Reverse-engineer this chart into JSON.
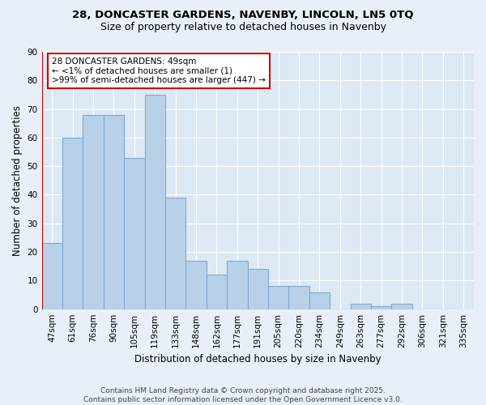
{
  "title_line1": "28, DONCASTER GARDENS, NAVENBY, LINCOLN, LN5 0TQ",
  "title_line2": "Size of property relative to detached houses in Navenby",
  "xlabel": "Distribution of detached houses by size in Navenby",
  "ylabel": "Number of detached properties",
  "categories": [
    "47sqm",
    "61sqm",
    "76sqm",
    "90sqm",
    "105sqm",
    "119sqm",
    "133sqm",
    "148sqm",
    "162sqm",
    "177sqm",
    "191sqm",
    "205sqm",
    "220sqm",
    "234sqm",
    "249sqm",
    "263sqm",
    "277sqm",
    "292sqm",
    "306sqm",
    "321sqm",
    "335sqm"
  ],
  "values": [
    23,
    60,
    68,
    68,
    53,
    75,
    39,
    17,
    12,
    17,
    14,
    8,
    8,
    6,
    0,
    2,
    1,
    2,
    0,
    0,
    0
  ],
  "bar_color": "#b8d0e8",
  "bar_edge_color": "#7aacd4",
  "highlight_color": "#cc0000",
  "annotation_text": "28 DONCASTER GARDENS: 49sqm\n← <1% of detached houses are smaller (1)\n>99% of semi-detached houses are larger (447) →",
  "annotation_box_color": "#ffffff",
  "annotation_box_edge": "#cc0000",
  "ylim": [
    0,
    90
  ],
  "yticks": [
    0,
    10,
    20,
    30,
    40,
    50,
    60,
    70,
    80,
    90
  ],
  "footer": "Contains HM Land Registry data © Crown copyright and database right 2025.\nContains public sector information licensed under the Open Government Licence v3.0.",
  "bg_color": "#e8eff8",
  "plot_bg_color": "#dce8f4",
  "title_fontsize": 9.5,
  "subtitle_fontsize": 9,
  "ylabel_fontsize": 8.5,
  "xlabel_fontsize": 8.5,
  "tick_fontsize": 7.5,
  "footer_fontsize": 6.5,
  "annotation_fontsize": 7.5
}
